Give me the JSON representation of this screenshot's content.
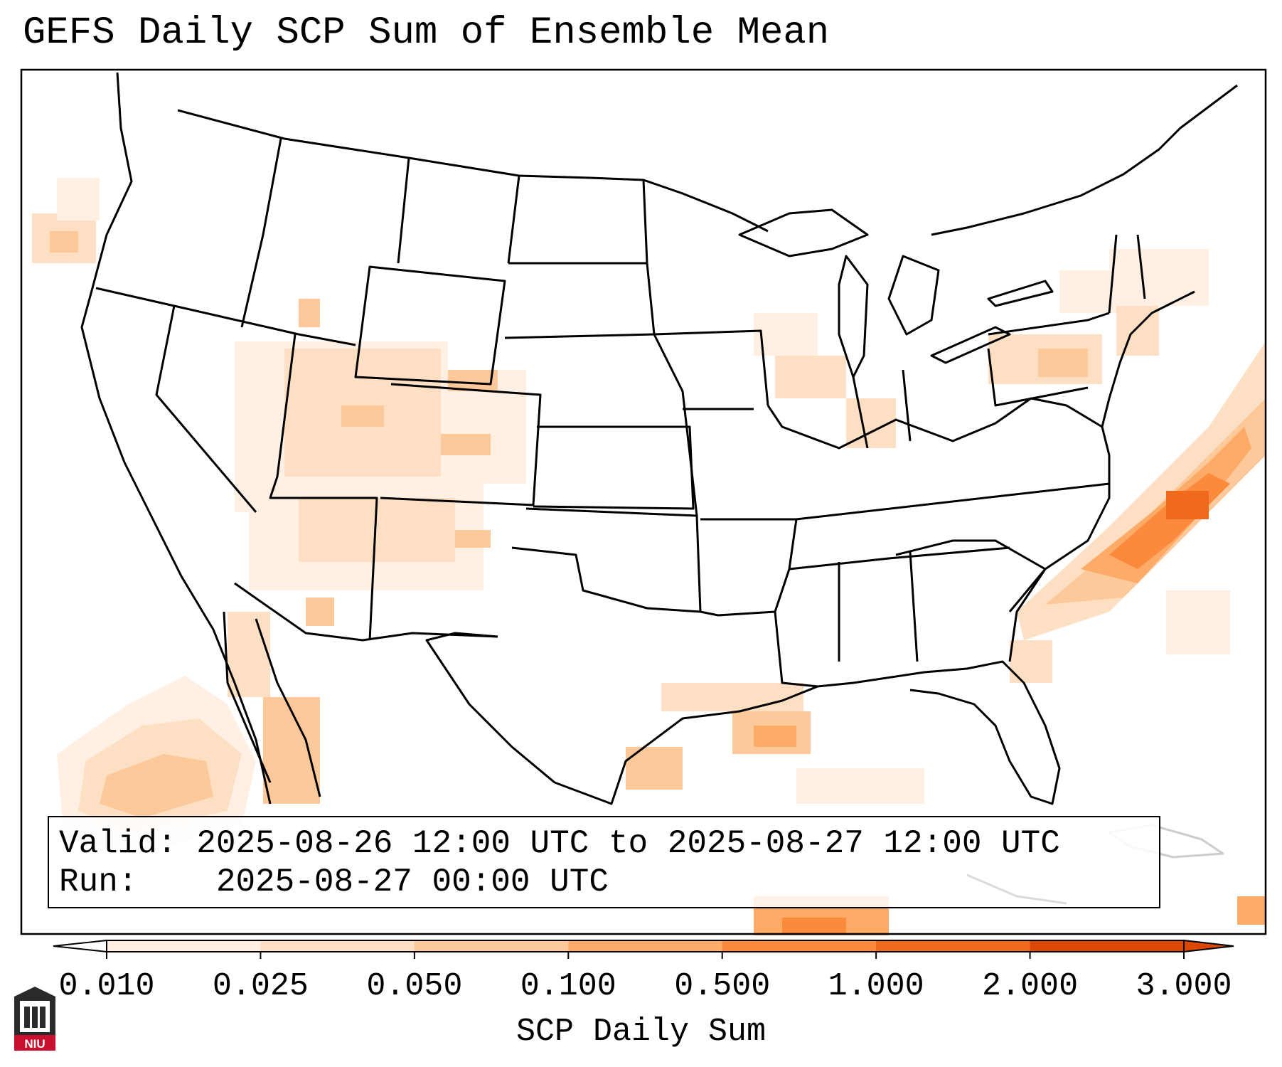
{
  "title": "GEFS Daily SCP Sum of Ensemble Mean",
  "valid_label": "Valid:",
  "valid_value": "2025-08-26 12:00 UTC to 2025-08-27 12:00 UTC",
  "run_label": "Run:",
  "run_value": "2025-08-27 00:00 UTC",
  "colorbar": {
    "label": "SCP Daily Sum",
    "ticks": [
      "0.010",
      "0.025",
      "0.050",
      "0.100",
      "0.500",
      "1.000",
      "2.000",
      "3.000"
    ],
    "colors": [
      "#fff0e3",
      "#fde0c4",
      "#fdc89a",
      "#fdab67",
      "#fb8a3c",
      "#ef6a1c",
      "#d94805"
    ],
    "extend": "both"
  },
  "logo": {
    "text": "NIU"
  }
}
